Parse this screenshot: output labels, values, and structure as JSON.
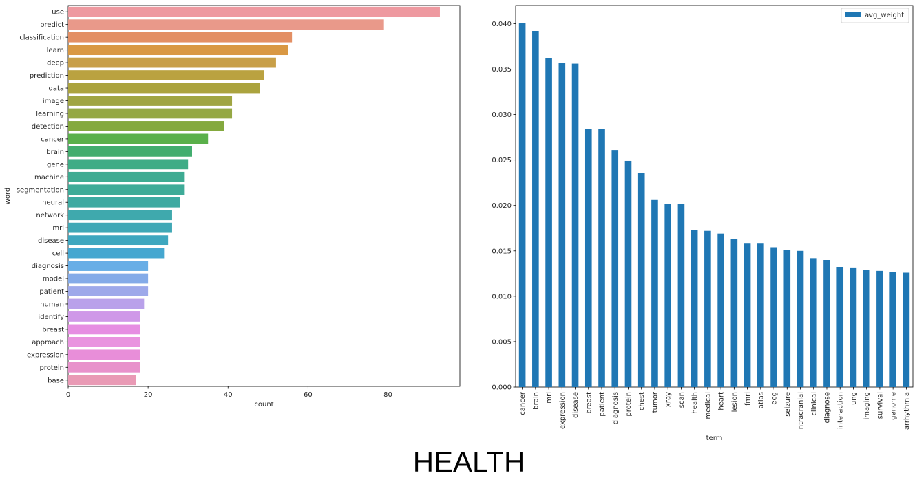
{
  "figure": {
    "caption": "HEALTH"
  },
  "chart_data": [
    {
      "type": "bar",
      "orientation": "horizontal",
      "xlabel": "count",
      "ylabel": "word",
      "xlim": [
        0,
        98
      ],
      "xticks": [
        0,
        20,
        40,
        60,
        80
      ],
      "categories": [
        "use",
        "predict",
        "classification",
        "learn",
        "deep",
        "prediction",
        "data",
        "image",
        "learning",
        "detection",
        "cancer",
        "brain",
        "gene",
        "machine",
        "segmentation",
        "neural",
        "network",
        "mri",
        "disease",
        "cell",
        "diagnosis",
        "model",
        "patient",
        "human",
        "identify",
        "breast",
        "approach",
        "expression",
        "protein",
        "base"
      ],
      "values": [
        93,
        79,
        56,
        55,
        52,
        49,
        48,
        41,
        41,
        39,
        35,
        31,
        30,
        29,
        29,
        28,
        26,
        26,
        25,
        24,
        20,
        20,
        20,
        19,
        18,
        18,
        18,
        18,
        18,
        17
      ],
      "colors": [
        "#ee99a0",
        "#e9998a",
        "#e38f64",
        "#d99843",
        "#c89f48",
        "#baa240",
        "#aba33e",
        "#a0a542",
        "#95a844",
        "#84a93e",
        "#5ab04a",
        "#42ad6e",
        "#3fac86",
        "#3eab92",
        "#3eab98",
        "#3eaaa2",
        "#3fa9ad",
        "#40a8b6",
        "#3ea7bf",
        "#45a7d0",
        "#68aee6",
        "#84abe8",
        "#9ea9ea",
        "#b9a1ea",
        "#cf98e8",
        "#e68ee2",
        "#e993df",
        "#e88ed9",
        "#e892cb",
        "#e99ab5"
      ],
      "grid": false
    },
    {
      "type": "bar",
      "orientation": "vertical",
      "xlabel": "term",
      "ylabel": "",
      "ylim": [
        0,
        0.042
      ],
      "yticks": [
        "0.000",
        "0.005",
        "0.010",
        "0.015",
        "0.020",
        "0.025",
        "0.030",
        "0.035",
        "0.040"
      ],
      "categories": [
        "cancer",
        "brain",
        "mri",
        "expression",
        "disease",
        "breast",
        "patient",
        "diagnosis",
        "protein",
        "chest",
        "tumor",
        "xray",
        "scan",
        "health",
        "medical",
        "heart",
        "lesion",
        "fmri",
        "atlas",
        "eeg",
        "seizure",
        "intracranial",
        "clinical",
        "diagnose",
        "interaction",
        "lung",
        "imaging",
        "survival",
        "genome",
        "arrhythmia"
      ],
      "series": [
        {
          "name": "avg_weight",
          "values": [
            0.0401,
            0.0392,
            0.0362,
            0.0357,
            0.0356,
            0.0284,
            0.0284,
            0.0261,
            0.0249,
            0.0236,
            0.0206,
            0.0202,
            0.0202,
            0.0173,
            0.0172,
            0.0169,
            0.0163,
            0.0158,
            0.0158,
            0.0154,
            0.0151,
            0.015,
            0.0142,
            0.014,
            0.0132,
            0.0131,
            0.0129,
            0.0128,
            0.0127,
            0.0126
          ]
        }
      ],
      "color": "#1f77b4",
      "legend": "top-right",
      "grid": false
    }
  ]
}
